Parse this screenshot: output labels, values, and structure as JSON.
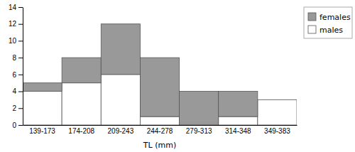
{
  "chart_data": {
    "type": "bar",
    "stacked": true,
    "xlabel": "TL (mm)",
    "categories": [
      "139-173",
      "174-208",
      "209-243",
      "244-278",
      "279-313",
      "314-348",
      "349-383"
    ],
    "series": [
      {
        "name": "males",
        "color": "#ffffff",
        "values": [
          4,
          5,
          6,
          1,
          0,
          1,
          3
        ]
      },
      {
        "name": "females",
        "color": "#999999",
        "values": [
          1,
          3,
          6,
          7,
          4,
          3,
          0
        ]
      }
    ],
    "ylim": [
      0,
      14
    ],
    "yticks": [
      0,
      2,
      4,
      6,
      8,
      10,
      12,
      14
    ],
    "grid": false,
    "legend": "right"
  }
}
